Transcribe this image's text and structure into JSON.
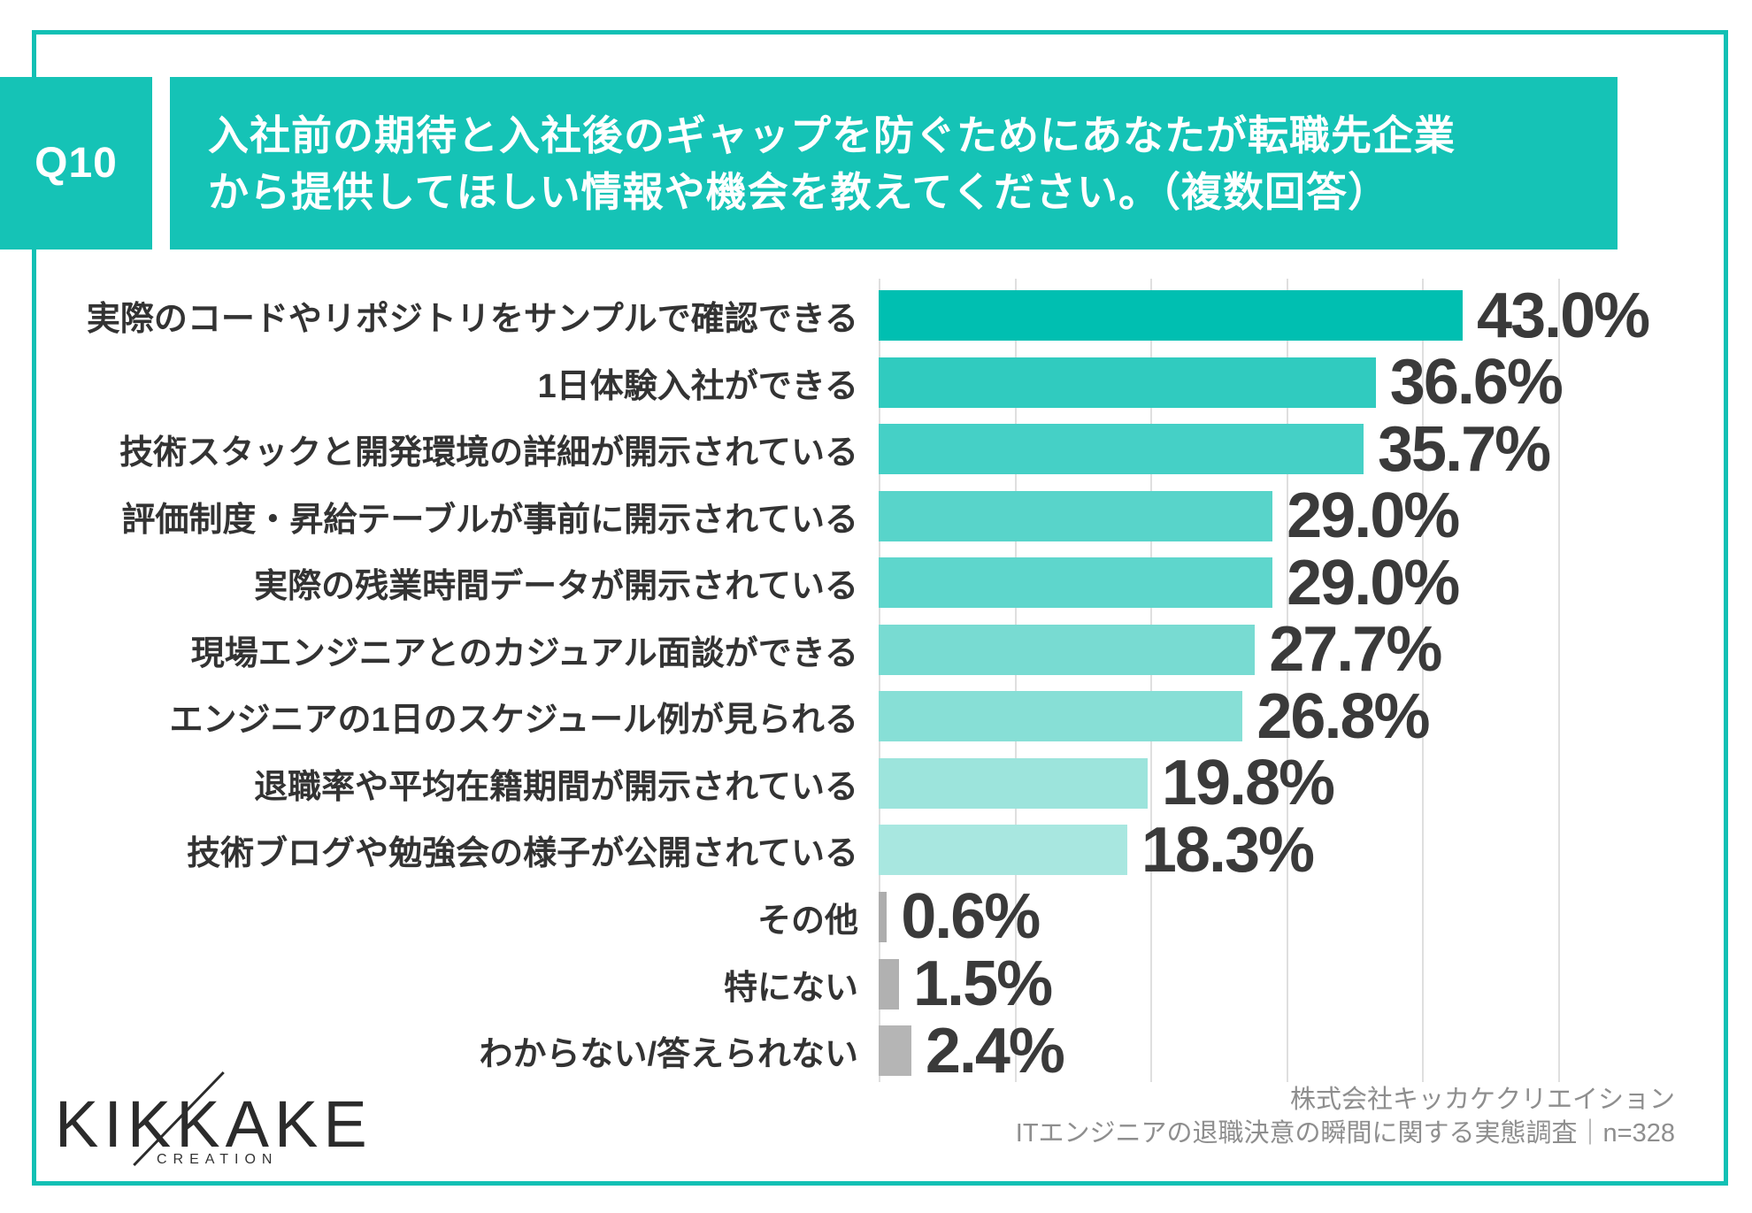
{
  "question": {
    "number": "Q10",
    "title_line1": "入社前の期待と入社後のギャップを防ぐためにあなたが転職先企業",
    "title_line2": "から提供してほしい情報や機会を教えてください。（複数回答）"
  },
  "chart_data": {
    "type": "bar",
    "orientation": "horizontal",
    "title": "入社前の期待と入社後のギャップを防ぐためにあなたが転職先企業から提供してほしい情報や機会を教えてください。（複数回答）",
    "categories": [
      "実際のコードやリポジトリをサンプルで確認できる",
      "1日体験入社ができる",
      "技術スタックと開発環境の詳細が開示されている",
      "評価制度・昇給テーブルが事前に開示されている",
      "実際の残業時間データが開示されている",
      "現場エンジニアとのカジュアル面談ができる",
      "エンジニアの1日のスケジュール例が見られる",
      "退職率や平均在籍期間が開示されている",
      "技術ブログや勉強会の様子が公開されている",
      "その他",
      "特にない",
      "わからない/答えられない"
    ],
    "values": [
      43.0,
      36.6,
      35.7,
      29.0,
      29.0,
      27.7,
      26.8,
      19.8,
      18.3,
      0.6,
      1.5,
      2.4
    ],
    "value_labels": [
      "43.0%",
      "36.6%",
      "35.7%",
      "29.0%",
      "29.0%",
      "27.7%",
      "26.8%",
      "19.8%",
      "18.3%",
      "0.6%",
      "1.5%",
      "2.4%"
    ],
    "bar_colors": [
      "#00BFB1",
      "#30CBBF",
      "#45D0C6",
      "#58D4CA",
      "#5ED6CC",
      "#78DBD2",
      "#87DFD6",
      "#9CE4DC",
      "#A8E7E0",
      "#ADADAD",
      "#B1B1B1",
      "#B5B5B5"
    ],
    "xlim": [
      0,
      50
    ],
    "gridline_interval": 10,
    "grid": true,
    "legend_position": "none"
  },
  "footer": {
    "logo_text": "KIKKAKE",
    "logo_subtext": "CREATION",
    "source_line1": "株式会社キッカケクリエイション",
    "source_line2": "ITエンジニアの退職決意の瞬間に関する実態調査｜n=328"
  },
  "colors": {
    "accent": "#15C3B6",
    "frame": "#12C0B4",
    "label_text": "#333333",
    "value_text": "#3A3A3A",
    "gridline": "#DFDFDF",
    "source_text": "#8E8E8E"
  }
}
